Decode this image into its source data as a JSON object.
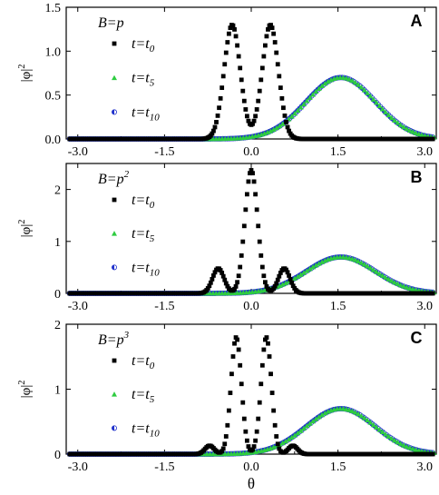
{
  "chart_data": [
    {
      "type": "scatter",
      "panel": "A",
      "annotation": "B=p",
      "annotation_sup": "",
      "xlabel": "",
      "ylabel": "|φ|",
      "ylabel_sup": "2",
      "xlim": [
        -3.2,
        3.2
      ],
      "ylim": [
        0,
        1.5
      ],
      "xticks": [
        -3.0,
        -1.5,
        0.0,
        1.5,
        3.0
      ],
      "xtick_labels": [
        "-3.0",
        "-1.5",
        "0.0",
        "1.5",
        "3.0"
      ],
      "yticks": [
        0.0,
        0.5,
        1.0,
        1.5
      ],
      "ytick_labels": [
        "0.0",
        "0.5",
        "1.0",
        "1.5"
      ],
      "grid": false,
      "legend_position": "upper-left",
      "series": [
        {
          "name": "t=t",
          "name_sub": "0",
          "marker": "square",
          "color": "#000000",
          "peaks": [
            {
              "center": -0.33,
              "height": 1.3,
              "width": 0.14
            },
            {
              "center": 0.33,
              "height": 1.3,
              "width": 0.14
            }
          ]
        },
        {
          "name": "t=t",
          "name_sub": "5",
          "marker": "triangle",
          "color": "#2ecc40",
          "peaks": [
            {
              "center": 1.55,
              "height": 0.7,
              "width": 0.6
            }
          ]
        },
        {
          "name": "t=t",
          "name_sub": "10",
          "marker": "half-circle",
          "color": "#2233cc",
          "peaks": [
            {
              "center": 1.55,
              "height": 0.7,
              "width": 0.6
            }
          ]
        }
      ]
    },
    {
      "type": "scatter",
      "panel": "B",
      "annotation": "B=p",
      "annotation_sup": "2",
      "xlabel": "",
      "ylabel": "|φ|",
      "ylabel_sup": "2",
      "xlim": [
        -3.2,
        3.2
      ],
      "ylim": [
        0,
        2.5
      ],
      "xticks": [
        -3.0,
        -1.5,
        0.0,
        1.5,
        3.0
      ],
      "xtick_labels": [
        "-3.0",
        "-1.5",
        "0.0",
        "1.5",
        "3.0"
      ],
      "yticks": [
        0,
        1,
        2
      ],
      "ytick_labels": [
        "0",
        "1",
        "2"
      ],
      "grid": false,
      "legend_position": "upper-left",
      "series": [
        {
          "name": "t=t",
          "name_sub": "0",
          "marker": "square",
          "color": "#000000",
          "peaks": [
            {
              "center": -0.57,
              "height": 0.48,
              "width": 0.1
            },
            {
              "center": 0.0,
              "height": 2.37,
              "width": 0.11
            },
            {
              "center": 0.57,
              "height": 0.48,
              "width": 0.1
            }
          ]
        },
        {
          "name": "t=t",
          "name_sub": "5",
          "marker": "triangle",
          "color": "#2ecc40",
          "peaks": [
            {
              "center": 1.55,
              "height": 0.7,
              "width": 0.6
            }
          ]
        },
        {
          "name": "t=t",
          "name_sub": "10",
          "marker": "half-circle",
          "color": "#2233cc",
          "peaks": [
            {
              "center": 1.55,
              "height": 0.7,
              "width": 0.6
            }
          ]
        }
      ]
    },
    {
      "type": "scatter",
      "panel": "C",
      "annotation": "B=p",
      "annotation_sup": "3",
      "xlabel": "θ",
      "ylabel": "|φ|",
      "ylabel_sup": "2",
      "xlim": [
        -3.2,
        3.2
      ],
      "ylim": [
        0,
        2
      ],
      "xticks": [
        -3.0,
        -1.5,
        0.0,
        1.5,
        3.0
      ],
      "xtick_labels": [
        "-3.0",
        "-1.5",
        "0.0",
        "1.5",
        "3.0"
      ],
      "yticks": [
        0,
        1,
        2
      ],
      "ytick_labels": [
        "0",
        "1",
        "2"
      ],
      "grid": false,
      "legend_position": "upper-left",
      "series": [
        {
          "name": "t=t",
          "name_sub": "0",
          "marker": "square",
          "color": "#000000",
          "peaks": [
            {
              "center": -0.72,
              "height": 0.13,
              "width": 0.08
            },
            {
              "center": -0.26,
              "height": 1.8,
              "width": 0.09
            },
            {
              "center": 0.26,
              "height": 1.8,
              "width": 0.09
            },
            {
              "center": 0.72,
              "height": 0.13,
              "width": 0.08
            }
          ]
        },
        {
          "name": "t=t",
          "name_sub": "5",
          "marker": "triangle",
          "color": "#2ecc40",
          "peaks": [
            {
              "center": 1.55,
              "height": 0.7,
              "width": 0.6
            }
          ]
        },
        {
          "name": "t=t",
          "name_sub": "10",
          "marker": "half-circle",
          "color": "#2233cc",
          "peaks": [
            {
              "center": 1.55,
              "height": 0.7,
              "width": 0.6
            }
          ]
        }
      ]
    }
  ]
}
